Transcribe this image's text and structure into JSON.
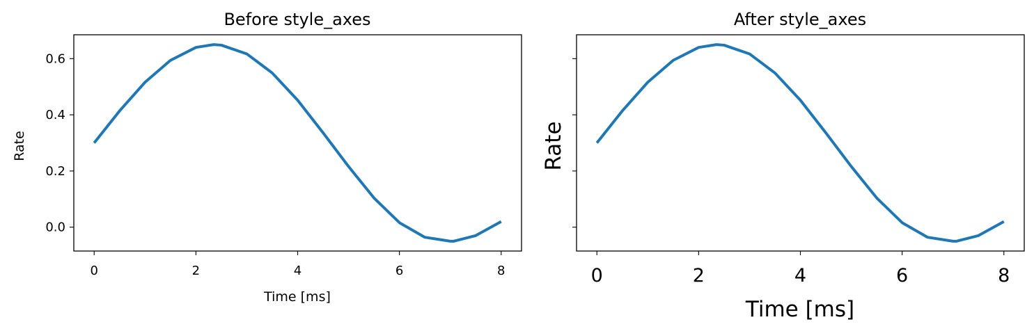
{
  "chart_data": [
    {
      "type": "line",
      "title": "Before style_axes",
      "xlabel": "Time [ms]",
      "ylabel": "Rate",
      "xlim": [
        -0.4,
        8.4
      ],
      "ylim": [
        -0.085,
        0.685
      ],
      "xticks": [
        0,
        2,
        4,
        6,
        8
      ],
      "xtick_labels": [
        "0",
        "2",
        "4",
        "6",
        "8"
      ],
      "yticks": [
        0.0,
        0.2,
        0.4,
        0.6
      ],
      "ytick_labels": [
        "0.0",
        "0.2",
        "0.4",
        "0.6"
      ],
      "grid": false,
      "series": [
        {
          "color": "#1f77b4",
          "x": [
            0,
            0.5,
            1,
            1.5,
            2,
            2.35,
            2.5,
            3,
            3.5,
            4,
            4.5,
            5,
            5.5,
            6,
            6.5,
            7,
            7.07,
            7.5,
            8
          ],
          "y": [
            0.3,
            0.414,
            0.516,
            0.594,
            0.64,
            0.65,
            0.648,
            0.617,
            0.549,
            0.452,
            0.336,
            0.216,
            0.104,
            0.016,
            -0.036,
            -0.05,
            -0.05,
            -0.03,
            0.02
          ]
        }
      ]
    },
    {
      "type": "line",
      "title": "After style_axes",
      "xlabel": "Time [ms]",
      "ylabel": "Rate",
      "xlim": [
        -0.4,
        8.4
      ],
      "ylim": [
        -0.085,
        0.685
      ],
      "xticks": [
        0,
        2,
        4,
        6,
        8
      ],
      "xtick_labels": [
        "0",
        "2",
        "4",
        "6",
        "8"
      ],
      "yticks": [
        0.0,
        0.2,
        0.4,
        0.6
      ],
      "ytick_labels": [],
      "grid": false,
      "series": [
        {
          "color": "#1f77b4",
          "x": [
            0,
            0.5,
            1,
            1.5,
            2,
            2.35,
            2.5,
            3,
            3.5,
            4,
            4.5,
            5,
            5.5,
            6,
            6.5,
            7,
            7.07,
            7.5,
            8
          ],
          "y": [
            0.3,
            0.414,
            0.516,
            0.594,
            0.64,
            0.65,
            0.648,
            0.617,
            0.549,
            0.452,
            0.336,
            0.216,
            0.104,
            0.016,
            -0.036,
            -0.05,
            -0.05,
            -0.03,
            0.02
          ]
        }
      ]
    }
  ]
}
